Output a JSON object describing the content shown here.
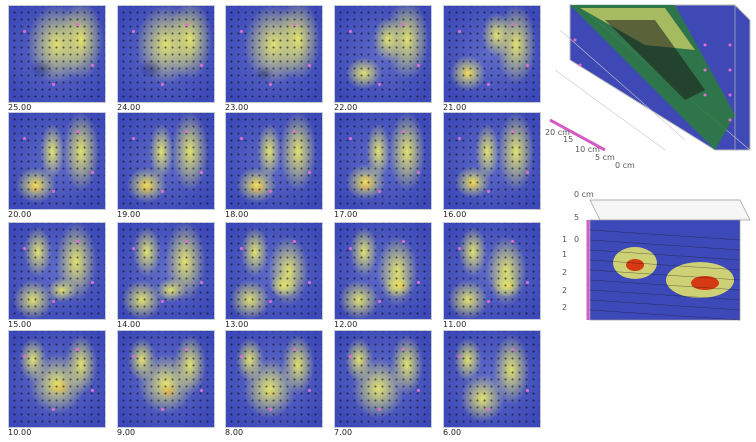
{
  "frames": [
    {
      "label": "25.00"
    },
    {
      "label": "24.00"
    },
    {
      "label": "23.00"
    },
    {
      "label": "22.00"
    },
    {
      "label": "21.00"
    },
    {
      "label": "20.00"
    },
    {
      "label": "19.00"
    },
    {
      "label": "18.00"
    },
    {
      "label": "17.00"
    },
    {
      "label": "16.00"
    },
    {
      "label": "15.00"
    },
    {
      "label": "14.00"
    },
    {
      "label": "13.00"
    },
    {
      "label": "12.00"
    },
    {
      "label": "11.00"
    },
    {
      "label": "10.00"
    },
    {
      "label": "9.00"
    },
    {
      "label": "8.00"
    },
    {
      "label": "7.00"
    },
    {
      "label": "6.00"
    }
  ],
  "top_cube": {
    "axis_labels": [
      "20 cm",
      "15",
      "10 cm",
      "5 cm",
      "0 cm"
    ]
  },
  "bottom_cube": {
    "axis_labels": [
      "0 cm",
      "5",
      "1",
      "0",
      "1",
      "2",
      "2",
      "2"
    ]
  },
  "colors": {
    "background": "#3d49b8",
    "low": "#5f6cc8",
    "mid": "#e8e86a",
    "high": "#d63a12",
    "marker": "#e36fd0"
  }
}
